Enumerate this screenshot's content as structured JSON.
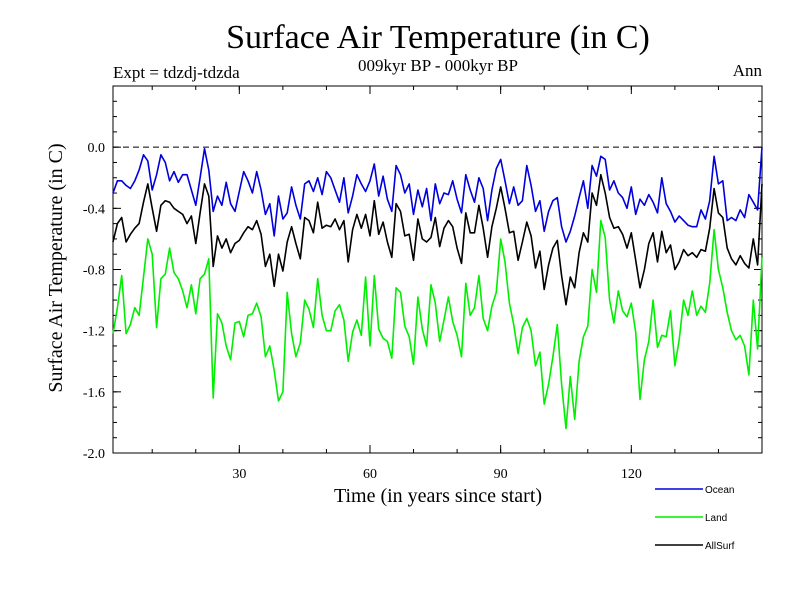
{
  "chart_data": {
    "type": "line",
    "title": "Surface Air Temperature (in C)",
    "subtitle": "009kyr BP - 000kyr BP",
    "expt_label": "Expt = tdzdj-tdzda",
    "season_label": "Ann",
    "xlabel": "Time (in years since start)",
    "ylabel": "Surface Air Temperature (in C)",
    "xlim": [
      1,
      150
    ],
    "ylim": [
      -2.0,
      0.4
    ],
    "xticks": [
      30,
      60,
      90,
      120
    ],
    "yticks": [
      -2.0,
      -1.6,
      -1.2,
      -0.8,
      -0.4,
      0.0
    ],
    "ytick_labels": [
      "-2.0",
      "-1.6",
      "-1.2",
      "-0.8",
      "-0.4",
      "0.0"
    ],
    "xtick_labels": [
      "30",
      "60",
      "90",
      "120"
    ],
    "reference_line": 0.0,
    "x": [
      1,
      2,
      3,
      4,
      5,
      6,
      7,
      8,
      9,
      10,
      11,
      12,
      13,
      14,
      15,
      16,
      17,
      18,
      19,
      20,
      21,
      22,
      23,
      24,
      25,
      26,
      27,
      28,
      29,
      30,
      31,
      32,
      33,
      34,
      35,
      36,
      37,
      38,
      39,
      40,
      41,
      42,
      43,
      44,
      45,
      46,
      47,
      48,
      49,
      50,
      51,
      52,
      53,
      54,
      55,
      56,
      57,
      58,
      59,
      60,
      61,
      62,
      63,
      64,
      65,
      66,
      67,
      68,
      69,
      70,
      71,
      72,
      73,
      74,
      75,
      76,
      77,
      78,
      79,
      80,
      81,
      82,
      83,
      84,
      85,
      86,
      87,
      88,
      89,
      90,
      91,
      92,
      93,
      94,
      95,
      96,
      97,
      98,
      99,
      100,
      101,
      102,
      103,
      104,
      105,
      106,
      107,
      108,
      109,
      110,
      111,
      112,
      113,
      114,
      115,
      116,
      117,
      118,
      119,
      120,
      121,
      122,
      123,
      124,
      125,
      126,
      127,
      128,
      129,
      130,
      131,
      132,
      133,
      134,
      135,
      136,
      137,
      138,
      139,
      140,
      141,
      142,
      143,
      144,
      145,
      146,
      147,
      148,
      149,
      150
    ],
    "series": [
      {
        "name": "Ocean",
        "color": "#0000dd",
        "values": [
          -0.3,
          -0.22,
          -0.22,
          -0.25,
          -0.27,
          -0.22,
          -0.15,
          -0.05,
          -0.09,
          -0.28,
          -0.18,
          -0.05,
          -0.1,
          -0.22,
          -0.16,
          -0.23,
          -0.18,
          -0.18,
          -0.28,
          -0.38,
          -0.2,
          -0.01,
          -0.15,
          -0.42,
          -0.32,
          -0.38,
          -0.23,
          -0.37,
          -0.42,
          -0.29,
          -0.16,
          -0.22,
          -0.3,
          -0.16,
          -0.28,
          -0.44,
          -0.37,
          -0.58,
          -0.32,
          -0.47,
          -0.43,
          -0.26,
          -0.38,
          -0.47,
          -0.24,
          -0.22,
          -0.29,
          -0.2,
          -0.31,
          -0.16,
          -0.2,
          -0.28,
          -0.36,
          -0.2,
          -0.43,
          -0.32,
          -0.18,
          -0.24,
          -0.29,
          -0.22,
          -0.11,
          -0.32,
          -0.19,
          -0.34,
          -0.42,
          -0.12,
          -0.18,
          -0.3,
          -0.24,
          -0.44,
          -0.28,
          -0.39,
          -0.27,
          -0.48,
          -0.24,
          -0.37,
          -0.3,
          -0.31,
          -0.22,
          -0.34,
          -0.43,
          -0.18,
          -0.28,
          -0.36,
          -0.2,
          -0.27,
          -0.48,
          -0.28,
          -0.14,
          -0.08,
          -0.22,
          -0.37,
          -0.26,
          -0.38,
          -0.35,
          -0.12,
          -0.25,
          -0.42,
          -0.35,
          -0.55,
          -0.42,
          -0.35,
          -0.33,
          -0.52,
          -0.62,
          -0.55,
          -0.45,
          -0.33,
          -0.22,
          -0.4,
          -0.12,
          -0.19,
          -0.06,
          -0.08,
          -0.28,
          -0.22,
          -0.3,
          -0.33,
          -0.4,
          -0.26,
          -0.44,
          -0.34,
          -0.38,
          -0.31,
          -0.36,
          -0.43,
          -0.2,
          -0.37,
          -0.42,
          -0.49,
          -0.45,
          -0.48,
          -0.51,
          -0.52,
          -0.52,
          -0.41,
          -0.47,
          -0.35,
          -0.06,
          -0.24,
          -0.22,
          -0.48,
          -0.46,
          -0.48,
          -0.41,
          -0.46,
          -0.31,
          -0.36,
          -0.41,
          0.0
        ]
      },
      {
        "name": "Land",
        "color": "#00ee00",
        "values": [
          -1.22,
          -1.05,
          -0.84,
          -1.22,
          -1.16,
          -1.05,
          -1.1,
          -0.85,
          -0.6,
          -0.7,
          -1.18,
          -0.86,
          -0.83,
          -0.66,
          -0.82,
          -0.86,
          -0.94,
          -1.05,
          -0.9,
          -1.09,
          -0.86,
          -0.83,
          -0.73,
          -1.64,
          -1.09,
          -1.15,
          -1.3,
          -1.39,
          -1.15,
          -1.14,
          -1.24,
          -1.1,
          -1.09,
          -1.02,
          -1.11,
          -1.37,
          -1.3,
          -1.46,
          -1.66,
          -1.6,
          -0.95,
          -1.22,
          -1.37,
          -1.28,
          -1.0,
          -1.06,
          -1.18,
          -0.86,
          -1.1,
          -1.2,
          -1.2,
          -1.07,
          -1.03,
          -1.13,
          -1.4,
          -1.21,
          -1.13,
          -1.23,
          -0.85,
          -1.3,
          -0.84,
          -1.19,
          -1.25,
          -1.27,
          -1.38,
          -0.92,
          -0.95,
          -1.17,
          -1.24,
          -1.42,
          -0.98,
          -1.19,
          -1.3,
          -0.9,
          -1.02,
          -1.27,
          -1.13,
          -0.98,
          -1.14,
          -1.23,
          -1.37,
          -0.89,
          -1.1,
          -1.05,
          -0.84,
          -1.12,
          -1.2,
          -1.04,
          -0.95,
          -0.6,
          -0.75,
          -1.02,
          -1.16,
          -1.35,
          -1.18,
          -1.12,
          -1.2,
          -1.43,
          -1.34,
          -1.68,
          -1.55,
          -1.37,
          -1.16,
          -1.55,
          -1.84,
          -1.5,
          -1.78,
          -1.4,
          -1.24,
          -1.17,
          -0.8,
          -0.95,
          -0.48,
          -0.59,
          -1.0,
          -1.15,
          -0.94,
          -1.07,
          -1.11,
          -1.02,
          -1.21,
          -1.65,
          -1.39,
          -1.27,
          -1.0,
          -1.31,
          -1.23,
          -1.24,
          -1.07,
          -1.43,
          -1.26,
          -1.0,
          -1.1,
          -0.94,
          -1.1,
          -1.04,
          -1.08,
          -0.89,
          -0.54,
          -0.8,
          -0.92,
          -1.08,
          -1.2,
          -1.26,
          -1.23,
          -1.3,
          -1.49,
          -1.0,
          -1.32,
          -0.72
        ]
      },
      {
        "name": "AllSurf",
        "color": "#000000",
        "values": [
          -0.62,
          -0.5,
          -0.46,
          -0.62,
          -0.57,
          -0.53,
          -0.5,
          -0.36,
          -0.24,
          -0.4,
          -0.55,
          -0.38,
          -0.35,
          -0.36,
          -0.4,
          -0.42,
          -0.44,
          -0.5,
          -0.45,
          -0.63,
          -0.43,
          -0.24,
          -0.32,
          -0.78,
          -0.58,
          -0.66,
          -0.6,
          -0.69,
          -0.63,
          -0.61,
          -0.56,
          -0.52,
          -0.54,
          -0.48,
          -0.57,
          -0.78,
          -0.7,
          -0.91,
          -0.7,
          -0.81,
          -0.62,
          -0.52,
          -0.63,
          -0.73,
          -0.46,
          -0.48,
          -0.56,
          -0.36,
          -0.53,
          -0.51,
          -0.52,
          -0.47,
          -0.54,
          -0.48,
          -0.75,
          -0.54,
          -0.44,
          -0.53,
          -0.44,
          -0.58,
          -0.35,
          -0.57,
          -0.49,
          -0.62,
          -0.72,
          -0.37,
          -0.42,
          -0.58,
          -0.57,
          -0.74,
          -0.47,
          -0.6,
          -0.62,
          -0.59,
          -0.46,
          -0.65,
          -0.53,
          -0.48,
          -0.52,
          -0.66,
          -0.76,
          -0.43,
          -0.56,
          -0.56,
          -0.38,
          -0.53,
          -0.72,
          -0.52,
          -0.4,
          -0.26,
          -0.4,
          -0.56,
          -0.55,
          -0.74,
          -0.62,
          -0.49,
          -0.58,
          -0.79,
          -0.68,
          -0.93,
          -0.77,
          -0.66,
          -0.61,
          -0.84,
          -1.03,
          -0.85,
          -0.92,
          -0.69,
          -0.56,
          -0.62,
          -0.3,
          -0.38,
          -0.18,
          -0.3,
          -0.46,
          -0.53,
          -0.52,
          -0.57,
          -0.66,
          -0.56,
          -0.74,
          -0.92,
          -0.8,
          -0.63,
          -0.56,
          -0.75,
          -0.55,
          -0.69,
          -0.64,
          -0.8,
          -0.75,
          -0.67,
          -0.71,
          -0.69,
          -0.72,
          -0.67,
          -0.68,
          -0.53,
          -0.27,
          -0.43,
          -0.46,
          -0.66,
          -0.73,
          -0.77,
          -0.71,
          -0.76,
          -0.79,
          -0.6,
          -0.77,
          -0.24
        ]
      }
    ],
    "legend_position": "bottom-right"
  }
}
